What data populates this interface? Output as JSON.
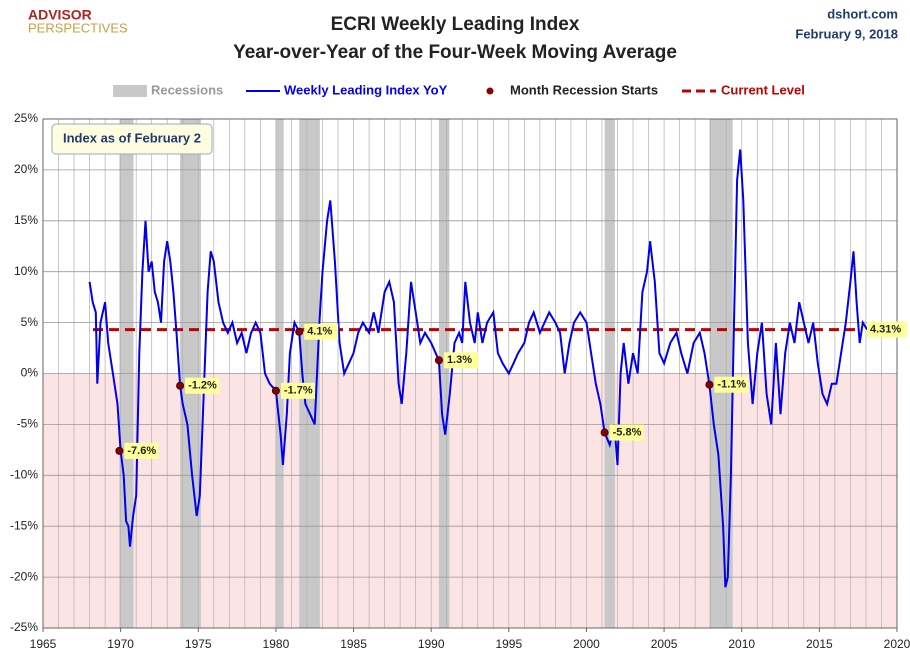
{
  "chart_data": {
    "type": "line",
    "title": "ECRI Weekly Leading Index",
    "subtitle": "Year-over-Year of the Four-Week Moving Average",
    "logo": [
      "ADVISOR",
      "PERSPECTIVES"
    ],
    "source": "dshort.com",
    "date": "February 9, 2018",
    "annotation": "Index as of February 2",
    "xlim": [
      1965,
      2020
    ],
    "xticks": [
      1965,
      1970,
      1975,
      1980,
      1985,
      1990,
      1995,
      2000,
      2005,
      2010,
      2015,
      2020
    ],
    "ylim": [
      -25,
      25
    ],
    "yticks": [
      {
        "value": -25,
        "label": "-25%"
      },
      {
        "value": -20,
        "label": "-20%"
      },
      {
        "value": -15,
        "label": "-15%"
      },
      {
        "value": -10,
        "label": "-10%"
      },
      {
        "value": -5,
        "label": "-5%"
      },
      {
        "value": 0,
        "label": "0%"
      },
      {
        "value": 5,
        "label": "5%"
      },
      {
        "value": 10,
        "label": "10%"
      },
      {
        "value": 15,
        "label": "15%"
      },
      {
        "value": 20,
        "label": "20%"
      },
      {
        "value": 25,
        "label": "25%"
      }
    ],
    "grid": true,
    "negative_shade": "#fde4e4",
    "recessions": {
      "name": "Recessions",
      "color": "#c8c8c8",
      "periods": [
        [
          1969.92,
          1970.83
        ],
        [
          1973.83,
          1975.17
        ],
        [
          1980.0,
          1980.5
        ],
        [
          1981.5,
          1982.83
        ],
        [
          1990.5,
          1991.17
        ],
        [
          2001.17,
          2001.83
        ],
        [
          2007.92,
          2009.42
        ]
      ]
    },
    "series": [
      {
        "name": "Weekly Leading Index YoY",
        "color": "#0000ee",
        "x": [
          1968.0,
          1968.2,
          1968.4,
          1968.5,
          1968.7,
          1969.0,
          1969.2,
          1969.5,
          1969.8,
          1970.0,
          1970.2,
          1970.35,
          1970.5,
          1970.6,
          1970.8,
          1971.0,
          1971.2,
          1971.4,
          1971.6,
          1971.8,
          1972.0,
          1972.2,
          1972.4,
          1972.6,
          1972.8,
          1973.0,
          1973.2,
          1973.4,
          1973.6,
          1973.83,
          1974.0,
          1974.3,
          1974.6,
          1974.9,
          1975.1,
          1975.4,
          1975.6,
          1975.8,
          1976.0,
          1976.3,
          1976.6,
          1976.9,
          1977.2,
          1977.5,
          1977.8,
          1978.1,
          1978.4,
          1978.7,
          1979.0,
          1979.3,
          1979.6,
          1980.0,
          1980.3,
          1980.45,
          1980.7,
          1980.9,
          1981.2,
          1981.5,
          1981.7,
          1981.9,
          1982.2,
          1982.5,
          1982.8,
          1983.0,
          1983.3,
          1983.5,
          1983.8,
          1984.1,
          1984.4,
          1984.7,
          1985.0,
          1985.3,
          1985.6,
          1986.0,
          1986.3,
          1986.6,
          1987.0,
          1987.3,
          1987.6,
          1987.9,
          1988.1,
          1988.4,
          1988.7,
          1989.0,
          1989.3,
          1989.6,
          1990.0,
          1990.5,
          1990.7,
          1990.9,
          1991.2,
          1991.5,
          1991.8,
          1992.0,
          1992.2,
          1992.5,
          1992.8,
          1993.0,
          1993.3,
          1993.6,
          1994.0,
          1994.3,
          1994.6,
          1995.0,
          1995.3,
          1995.6,
          1996.0,
          1996.3,
          1996.6,
          1997.0,
          1997.3,
          1997.6,
          1998.0,
          1998.3,
          1998.6,
          1998.9,
          1999.2,
          1999.6,
          2000.0,
          2000.3,
          2000.6,
          2000.9,
          2001.17,
          2001.5,
          2001.8,
          2002.0,
          2002.2,
          2002.4,
          2002.7,
          2003.0,
          2003.3,
          2003.6,
          2003.9,
          2004.1,
          2004.4,
          2004.7,
          2005.0,
          2005.4,
          2005.8,
          2006.1,
          2006.5,
          2006.9,
          2007.3,
          2007.6,
          2007.92,
          2008.2,
          2008.5,
          2008.8,
          2008.95,
          2009.1,
          2009.3,
          2009.5,
          2009.7,
          2009.9,
          2010.1,
          2010.4,
          2010.7,
          2011.0,
          2011.3,
          2011.6,
          2011.9,
          2012.2,
          2012.5,
          2012.8,
          2013.1,
          2013.4,
          2013.7,
          2014.0,
          2014.3,
          2014.6,
          2014.9,
          2015.2,
          2015.5,
          2015.8,
          2016.1,
          2016.4,
          2016.7,
          2017.0,
          2017.2,
          2017.4,
          2017.6,
          2017.8,
          2018.08
        ],
        "values": [
          9,
          7,
          6,
          -1,
          5,
          7,
          3,
          0,
          -3,
          -7.6,
          -10,
          -14.5,
          -15,
          -17,
          -14,
          -12,
          2,
          10,
          15,
          10,
          11,
          8,
          7,
          5,
          11,
          13,
          11,
          8,
          4,
          -1.2,
          -3,
          -5,
          -10,
          -14,
          -12,
          0,
          8,
          12,
          11,
          7,
          5,
          4,
          5,
          3,
          4,
          2,
          4,
          5,
          4,
          0,
          -1,
          -1.7,
          -6,
          -9,
          -4,
          2,
          5,
          4.1,
          0,
          -3,
          -4,
          -5,
          5,
          10,
          15,
          17,
          11,
          3,
          0,
          1,
          2,
          4,
          5,
          4,
          6,
          4,
          8,
          9,
          7,
          -1,
          -3,
          2,
          9,
          6,
          3,
          4,
          3,
          1.3,
          -4,
          -6,
          -2,
          3,
          4,
          3,
          9,
          5,
          3,
          6,
          3,
          5,
          6,
          2,
          1,
          0,
          1,
          2,
          3,
          5,
          6,
          4,
          5,
          6,
          5,
          4,
          0,
          3,
          5,
          6,
          5,
          2,
          -1,
          -3,
          -5.8,
          -7,
          -5,
          -9,
          0,
          3,
          -1,
          2,
          0,
          8,
          10,
          13,
          9,
          2,
          1,
          3,
          4,
          2,
          0,
          3,
          4,
          2,
          -1.1,
          -5,
          -8,
          -15,
          -21,
          -20,
          -10,
          5,
          19,
          22,
          17,
          3,
          -3,
          2,
          5,
          -2,
          -5,
          3,
          -4,
          2,
          5,
          3,
          7,
          5,
          3,
          5,
          1,
          -2,
          -3,
          -1,
          -1,
          2,
          5,
          9,
          12,
          7,
          3,
          5,
          4.31
        ]
      }
    ],
    "recession_starts": {
      "name": "Month Recession Starts",
      "color": "#8b0000",
      "x": [
        1969.92,
        1973.83,
        1980.0,
        1981.5,
        1990.5,
        2001.17,
        2007.92
      ],
      "values": [
        -7.6,
        -1.2,
        -1.7,
        4.1,
        1.3,
        -5.8,
        -1.1
      ],
      "value_labels": [
        "-7.6%",
        "-1.2%",
        "-1.7%",
        "4.1%",
        "1.3%",
        "-5.8%",
        "-1.1%"
      ]
    },
    "current_level": {
      "name": "Current Level",
      "color": "#c00000",
      "value": 4.31,
      "value_label": "4.31%"
    }
  }
}
